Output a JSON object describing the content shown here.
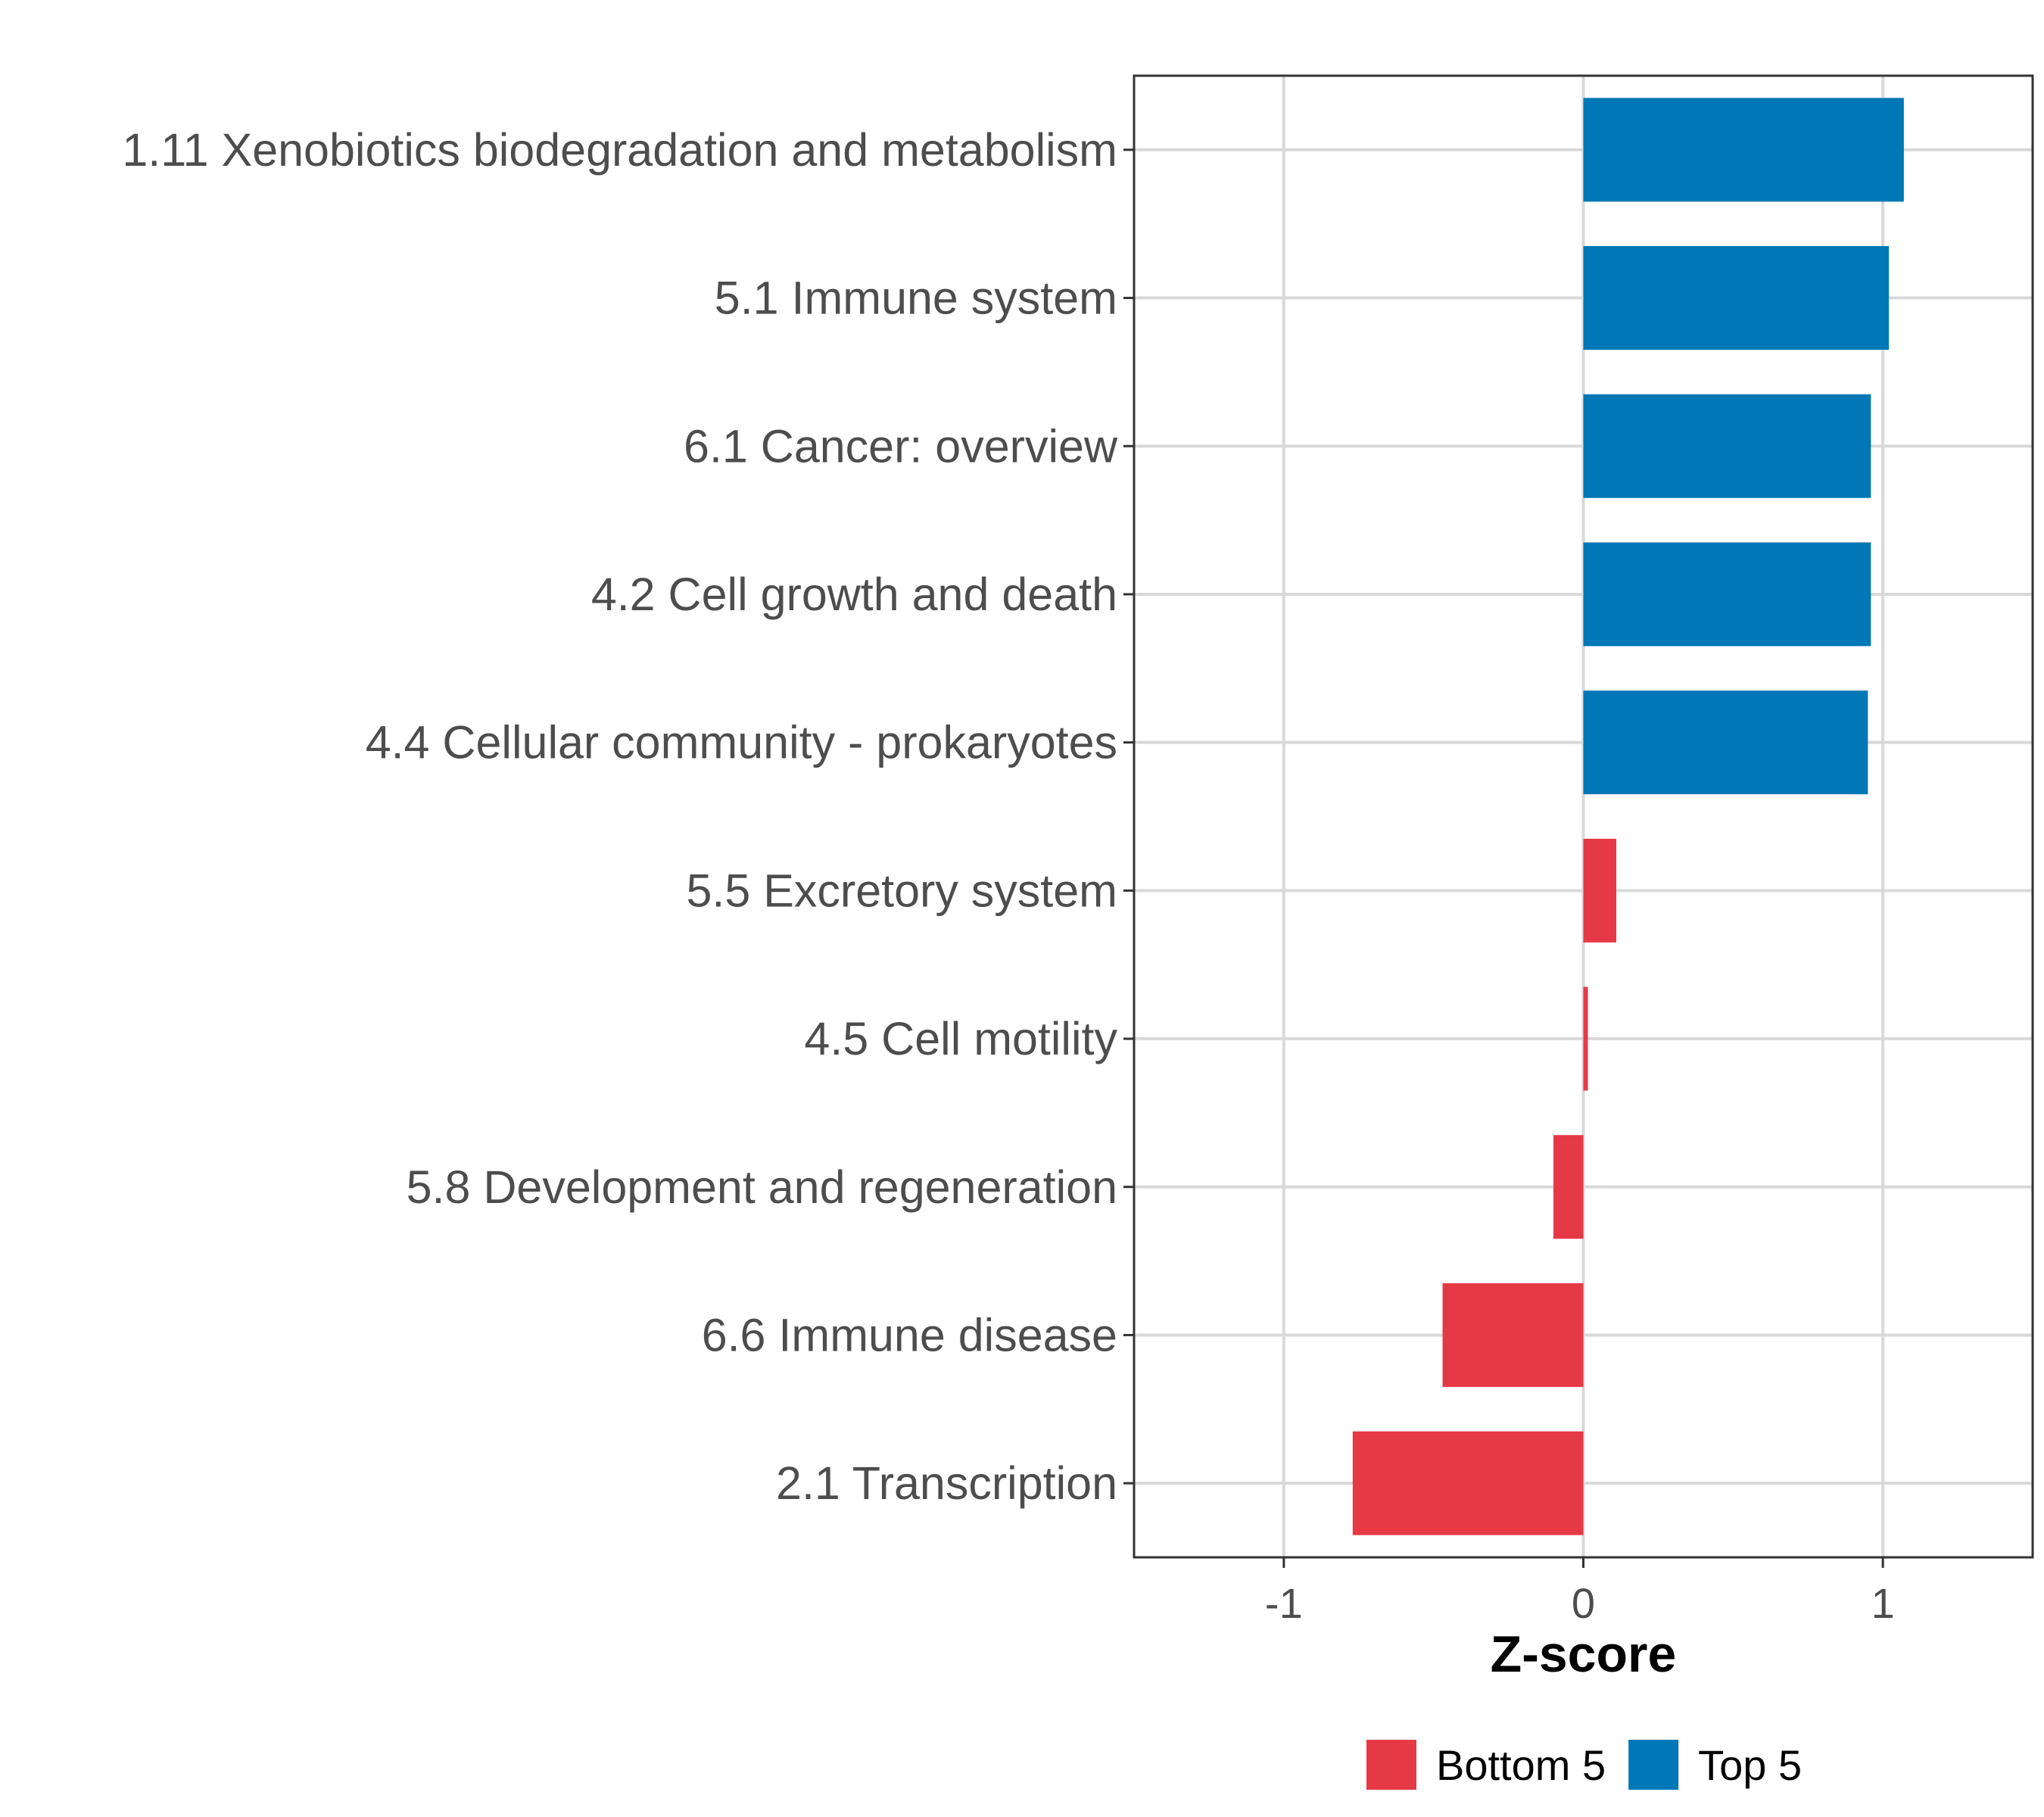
{
  "chart_data": {
    "type": "bar",
    "orientation": "horizontal",
    "title": "",
    "xlabel": "Z-score",
    "ylabel": "",
    "xlim": [
      -1.5,
      1.5
    ],
    "xticks": [
      -1,
      0,
      1
    ],
    "xtick_labels": [
      "-1",
      "0",
      "1"
    ],
    "grid": true,
    "legend_position": "bottom",
    "categories": [
      "1.11 Xenobiotics biodegradation and metabolism",
      "5.1 Immune system",
      "6.1 Cancer: overview",
      "4.2 Cell growth and death",
      "4.4 Cellular community - prokaryotes",
      "5.5 Excretory system",
      "4.5 Cell motility",
      "5.8 Development and regeneration",
      "6.6 Immune disease",
      "2.1 Transcription"
    ],
    "values": [
      1.07,
      1.02,
      0.96,
      0.96,
      0.95,
      0.11,
      0.01,
      -0.1,
      -0.47,
      -0.77
    ],
    "groups": [
      "Top 5",
      "Top 5",
      "Top 5",
      "Top 5",
      "Top 5",
      "Bottom 5",
      "Bottom 5",
      "Bottom 5",
      "Bottom 5",
      "Bottom 5"
    ],
    "legend": [
      {
        "label": "Bottom 5",
        "color": "#e63946"
      },
      {
        "label": "Top 5",
        "color": "#0077b6"
      }
    ]
  }
}
